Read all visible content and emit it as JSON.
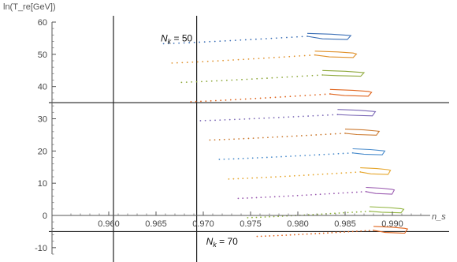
{
  "chart_data": {
    "type": "scatter",
    "title": "",
    "xlabel": "n_s",
    "ylabel": "ln(T_re[GeV])",
    "xlim": [
      0.954,
      0.9935
    ],
    "ylim": [
      -12,
      60
    ],
    "x_ticks": [
      0.96,
      0.965,
      0.97,
      0.975,
      0.98,
      0.985,
      0.99
    ],
    "y_ticks": [
      -10,
      0,
      10,
      20,
      30,
      40,
      50,
      60
    ],
    "x_tick_labels": [
      "0.960",
      "0.965",
      "0.970",
      "0.975",
      "0.980",
      "0.985",
      "0.990"
    ],
    "y_tick_labels": [
      "-10",
      "0",
      "10",
      "20",
      "30",
      "40",
      "50",
      "60"
    ],
    "grid": false,
    "reference_lines": {
      "vertical": [
        0.9605,
        0.9693
      ],
      "horizontal": [
        35,
        -5
      ]
    },
    "annotations": [
      {
        "label_prefix": "N",
        "label_subscript": "k",
        "label_suffix": " = 50",
        "x": 0.9655,
        "y": 54
      },
      {
        "label_prefix": "N",
        "label_subscript": "k",
        "label_suffix": " = 70",
        "x": 0.9703,
        "y": -9
      }
    ],
    "series": [
      {
        "color": "#3b6fb6",
        "dotted": [
          0.9658,
          0.981,
          53.3,
          55.6
        ],
        "loop": [
          0.981,
          0.9856,
          56.5,
          55.8,
          54.2
        ]
      },
      {
        "color": "#e0912b",
        "dotted": [
          0.9667,
          0.9818,
          47.3,
          49.8
        ],
        "loop": [
          0.9818,
          0.9862,
          51.0,
          50.1,
          48.6
        ]
      },
      {
        "color": "#8da83a",
        "dotted": [
          0.9677,
          0.9826,
          41.3,
          43.6
        ],
        "loop": [
          0.9826,
          0.987,
          45.0,
          44.3,
          42.8
        ]
      },
      {
        "color": "#e0651e",
        "dotted": [
          0.9687,
          0.9834,
          35.3,
          37.7
        ],
        "loop": [
          0.9834,
          0.9878,
          39.1,
          38.2,
          36.6
        ]
      },
      {
        "color": "#7b68b6",
        "dotted": [
          0.9697,
          0.9842,
          29.4,
          31.3
        ],
        "loop": [
          0.9842,
          0.9882,
          32.9,
          32.2,
          30.5
        ]
      },
      {
        "color": "#cc7a30",
        "dotted": [
          0.9707,
          0.985,
          23.4,
          25.5
        ],
        "loop": [
          0.985,
          0.9886,
          26.8,
          26.1,
          24.5
        ]
      },
      {
        "color": "#4a8ccc",
        "dotted": [
          0.9717,
          0.9858,
          17.4,
          19.4
        ],
        "loop": [
          0.9858,
          0.9892,
          20.7,
          20.0,
          18.4
        ]
      },
      {
        "color": "#e6a62c",
        "dotted": [
          0.9727,
          0.9866,
          11.3,
          13.5
        ],
        "loop": [
          0.9866,
          0.9898,
          14.8,
          14.0,
          12.3
        ]
      },
      {
        "color": "#9a5ab0",
        "dotted": [
          0.9737,
          0.9872,
          5.3,
          7.4
        ],
        "loop": [
          0.9872,
          0.9902,
          8.7,
          7.9,
          6.2
        ]
      },
      {
        "color": "#8fb33c",
        "dotted": [
          0.9747,
          0.9876,
          -0.7,
          1.3
        ],
        "loop": [
          0.9876,
          0.9912,
          2.7,
          1.9,
          0.4
        ]
      },
      {
        "color": "#e0651e",
        "dotted": [
          0.9757,
          0.988,
          -6.5,
          -4.6
        ],
        "loop": [
          0.988,
          0.9916,
          -3.4,
          -4.2,
          -5.9
        ]
      }
    ]
  }
}
